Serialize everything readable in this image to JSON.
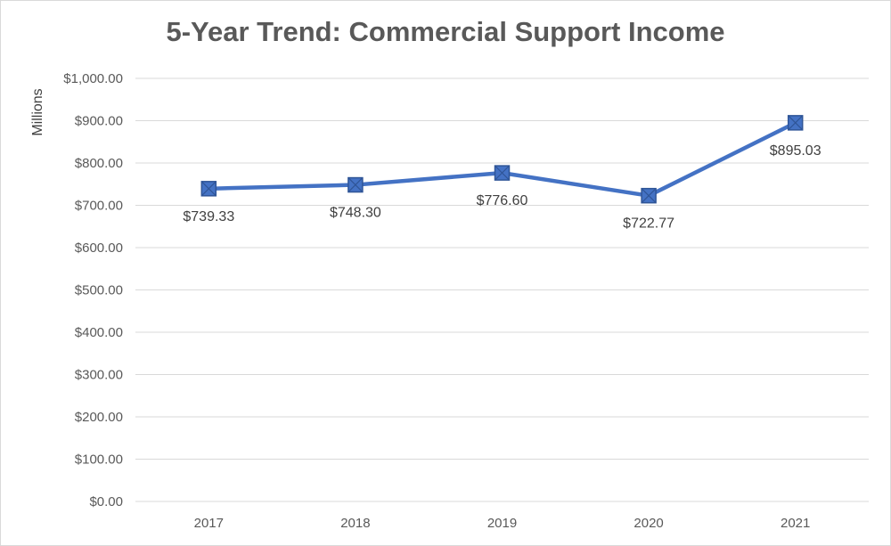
{
  "chart_data": {
    "type": "line",
    "title": "5-Year Trend: Commercial Support Income",
    "xlabel": "",
    "ylabel": "Millions",
    "categories": [
      "2017",
      "2018",
      "2019",
      "2020",
      "2021"
    ],
    "series": [
      {
        "values": [
          739.33,
          748.3,
          776.6,
          722.77,
          895.03
        ],
        "data_labels": [
          "$739.33",
          "$748.30",
          "$776.60",
          "$722.77",
          "$895.03"
        ]
      }
    ],
    "ylim": [
      0,
      1000
    ],
    "y_ticks": [
      {
        "value": 0,
        "label": "$0.00"
      },
      {
        "value": 100,
        "label": "$100.00"
      },
      {
        "value": 200,
        "label": "$200.00"
      },
      {
        "value": 300,
        "label": "$300.00"
      },
      {
        "value": 400,
        "label": "$400.00"
      },
      {
        "value": 500,
        "label": "$500.00"
      },
      {
        "value": 600,
        "label": "$600.00"
      },
      {
        "value": 700,
        "label": "$700.00"
      },
      {
        "value": 800,
        "label": "$800.00"
      },
      {
        "value": 900,
        "label": "$900.00"
      },
      {
        "value": 1000,
        "label": "$1,000.00"
      }
    ],
    "grid": true,
    "legend": "none",
    "colors": {
      "line": "#4472c4",
      "marker": "#4472c4",
      "grid": "#d9d9d9",
      "text": "#595959"
    }
  }
}
